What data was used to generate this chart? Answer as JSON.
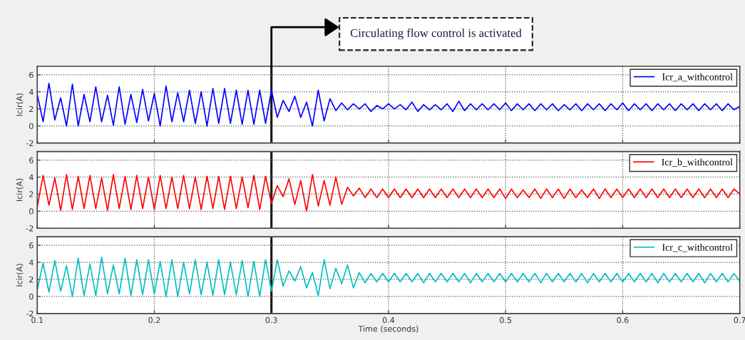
{
  "chart_data": [
    {
      "type": "line",
      "ylabel": "Icir(A)",
      "xlim": [
        0.1,
        0.7
      ],
      "xticks": [
        0.1,
        0.2,
        0.3,
        0.4,
        0.5,
        0.6,
        0.7
      ],
      "ylim": [
        -2,
        7
      ],
      "yticks": [
        -2,
        0,
        2,
        4,
        6
      ],
      "grid": true,
      "legend": "top right",
      "tick_labels": "y",
      "ref_lines": [
        {
          "axis": "x",
          "value": 0.3,
          "color": "#000000"
        }
      ],
      "annotations": [
        "Circulating flow control is activated"
      ],
      "x": [
        0.1,
        0.105,
        0.11,
        0.115,
        0.12,
        0.125,
        0.13,
        0.135,
        0.14,
        0.145,
        0.15,
        0.155,
        0.16,
        0.165,
        0.17,
        0.175,
        0.18,
        0.185,
        0.19,
        0.195,
        0.2,
        0.205,
        0.21,
        0.215,
        0.22,
        0.225,
        0.23,
        0.235,
        0.24,
        0.245,
        0.25,
        0.255,
        0.26,
        0.265,
        0.27,
        0.275,
        0.28,
        0.285,
        0.29,
        0.295,
        0.3,
        0.305,
        0.31,
        0.315,
        0.32,
        0.325,
        0.33,
        0.335,
        0.34,
        0.345,
        0.35,
        0.355,
        0.36,
        0.365,
        0.37,
        0.375,
        0.38,
        0.385,
        0.39,
        0.395,
        0.4,
        0.405,
        0.41,
        0.415,
        0.42,
        0.425,
        0.43,
        0.435,
        0.44,
        0.445,
        0.45,
        0.455,
        0.46,
        0.465,
        0.47,
        0.475,
        0.48,
        0.485,
        0.49,
        0.495,
        0.5,
        0.505,
        0.51,
        0.515,
        0.52,
        0.525,
        0.53,
        0.535,
        0.54,
        0.545,
        0.55,
        0.555,
        0.56,
        0.565,
        0.57,
        0.575,
        0.58,
        0.585,
        0.59,
        0.595,
        0.6,
        0.605,
        0.61,
        0.615,
        0.62,
        0.625,
        0.63,
        0.635,
        0.64,
        0.645,
        0.65,
        0.655,
        0.66,
        0.665,
        0.67,
        0.675,
        0.68,
        0.685,
        0.69,
        0.695,
        0.7
      ],
      "series": [
        {
          "name": "Icr_a_withcontrol",
          "color": "#0000ff",
          "values": [
            3.7,
            0.5,
            5.0,
            0.7,
            3.3,
            0.0,
            4.9,
            0.0,
            3.7,
            0.5,
            4.6,
            0.5,
            3.6,
            0.1,
            4.6,
            0.2,
            3.7,
            0.4,
            4.3,
            0.6,
            3.8,
            0.0,
            4.7,
            0.5,
            3.9,
            0.5,
            4.2,
            0.3,
            4.0,
            0.0,
            4.4,
            0.3,
            4.4,
            0.3,
            4.2,
            0.2,
            4.2,
            0.2,
            4.2,
            0.3,
            4.2,
            1.0,
            3.0,
            1.7,
            3.5,
            1.0,
            2.8,
            0.0,
            4.2,
            0.6,
            3.2,
            1.8,
            2.7,
            1.9,
            2.6,
            2.0,
            2.6,
            1.7,
            2.4,
            2.0,
            2.6,
            2.0,
            2.5,
            1.9,
            2.8,
            1.7,
            2.5,
            1.9,
            2.5,
            1.9,
            2.6,
            1.7,
            2.9,
            1.8,
            2.6,
            1.9,
            2.6,
            1.9,
            2.6,
            1.9,
            2.7,
            1.8,
            2.6,
            1.9,
            2.6,
            1.8,
            2.6,
            1.9,
            2.6,
            1.8,
            2.5,
            1.9,
            2.6,
            1.8,
            2.6,
            1.9,
            2.6,
            1.8,
            2.6,
            1.9,
            2.7,
            1.8,
            2.6,
            1.9,
            2.6,
            1.8,
            2.6,
            1.9,
            2.6,
            1.8,
            2.6,
            1.9,
            2.6,
            1.8,
            2.6,
            1.9,
            2.6,
            1.8,
            2.6,
            1.9,
            2.3
          ]
        }
      ]
    },
    {
      "type": "line",
      "ylabel": "Icir(A)",
      "xlim": [
        0.1,
        0.7
      ],
      "xticks": [
        0.1,
        0.2,
        0.3,
        0.4,
        0.5,
        0.6,
        0.7
      ],
      "ylim": [
        -2,
        7
      ],
      "yticks": [
        -2,
        0,
        2,
        4,
        6
      ],
      "grid": true,
      "legend": "top right",
      "tick_labels": "y",
      "ref_lines": [
        {
          "axis": "x",
          "value": 0.3,
          "color": "#000000"
        }
      ],
      "x": [
        0.1,
        0.105,
        0.11,
        0.115,
        0.12,
        0.125,
        0.13,
        0.135,
        0.14,
        0.145,
        0.15,
        0.155,
        0.16,
        0.165,
        0.17,
        0.175,
        0.18,
        0.185,
        0.19,
        0.195,
        0.2,
        0.205,
        0.21,
        0.215,
        0.22,
        0.225,
        0.23,
        0.235,
        0.24,
        0.245,
        0.25,
        0.255,
        0.26,
        0.265,
        0.27,
        0.275,
        0.28,
        0.285,
        0.29,
        0.295,
        0.3,
        0.305,
        0.31,
        0.315,
        0.32,
        0.325,
        0.33,
        0.335,
        0.34,
        0.345,
        0.35,
        0.355,
        0.36,
        0.365,
        0.37,
        0.375,
        0.38,
        0.385,
        0.39,
        0.395,
        0.4,
        0.405,
        0.41,
        0.415,
        0.42,
        0.425,
        0.43,
        0.435,
        0.44,
        0.445,
        0.45,
        0.455,
        0.46,
        0.465,
        0.47,
        0.475,
        0.48,
        0.485,
        0.49,
        0.495,
        0.5,
        0.505,
        0.51,
        0.515,
        0.52,
        0.525,
        0.53,
        0.535,
        0.54,
        0.545,
        0.55,
        0.555,
        0.56,
        0.565,
        0.57,
        0.575,
        0.58,
        0.585,
        0.59,
        0.595,
        0.6,
        0.605,
        0.61,
        0.615,
        0.62,
        0.625,
        0.63,
        0.635,
        0.64,
        0.645,
        0.65,
        0.655,
        0.66,
        0.665,
        0.67,
        0.675,
        0.68,
        0.685,
        0.69,
        0.695,
        0.7
      ],
      "series": [
        {
          "name": "Icr_b_withcontrol",
          "color": "#ff0000",
          "values": [
            0.5,
            4.2,
            0.7,
            3.9,
            0.1,
            4.3,
            0.2,
            4.1,
            0.3,
            4.2,
            0.3,
            3.9,
            0.1,
            4.3,
            0.3,
            4.1,
            0.2,
            4.2,
            0.3,
            4.0,
            0.2,
            4.2,
            0.3,
            4.0,
            0.3,
            4.2,
            0.3,
            4.0,
            0.2,
            4.1,
            0.3,
            4.1,
            0.2,
            4.1,
            0.3,
            4.0,
            0.4,
            4.2,
            0.2,
            4.1,
            0.9,
            3.0,
            1.7,
            3.8,
            0.8,
            3.6,
            0.0,
            4.3,
            0.6,
            3.6,
            0.7,
            4.0,
            0.8,
            2.8,
            1.8,
            2.7,
            1.6,
            2.6,
            1.6,
            2.6,
            1.6,
            2.6,
            1.6,
            2.6,
            1.6,
            2.6,
            1.6,
            2.6,
            1.6,
            2.6,
            1.6,
            2.6,
            1.6,
            2.6,
            1.6,
            2.6,
            1.6,
            2.6,
            1.6,
            2.6,
            1.5,
            2.6,
            1.6,
            2.5,
            1.6,
            2.6,
            1.5,
            2.6,
            1.6,
            2.6,
            1.5,
            2.6,
            1.6,
            2.5,
            1.6,
            2.6,
            1.5,
            2.6,
            1.6,
            2.6,
            1.6,
            2.6,
            1.6,
            2.6,
            1.6,
            2.6,
            1.6,
            2.6,
            1.6,
            2.6,
            1.6,
            2.6,
            1.6,
            2.6,
            1.6,
            2.6,
            1.6,
            2.6,
            1.6,
            2.6,
            2.0
          ]
        }
      ]
    },
    {
      "type": "line",
      "xlabel": "Time (seconds)",
      "ylabel": "Icir(A)",
      "xlim": [
        0.1,
        0.7
      ],
      "xticks": [
        0.1,
        0.2,
        0.3,
        0.4,
        0.5,
        0.6,
        0.7
      ],
      "ylim": [
        -2,
        7
      ],
      "yticks": [
        -2,
        0,
        2,
        4,
        6
      ],
      "grid": true,
      "legend": "top right",
      "ref_lines": [
        {
          "axis": "x",
          "value": 0.3,
          "color": "#000000"
        }
      ],
      "x": [
        0.1,
        0.105,
        0.11,
        0.115,
        0.12,
        0.125,
        0.13,
        0.135,
        0.14,
        0.145,
        0.15,
        0.155,
        0.16,
        0.165,
        0.17,
        0.175,
        0.18,
        0.185,
        0.19,
        0.195,
        0.2,
        0.205,
        0.21,
        0.215,
        0.22,
        0.225,
        0.23,
        0.235,
        0.24,
        0.245,
        0.25,
        0.255,
        0.26,
        0.265,
        0.27,
        0.275,
        0.28,
        0.285,
        0.29,
        0.295,
        0.3,
        0.305,
        0.31,
        0.315,
        0.32,
        0.325,
        0.33,
        0.335,
        0.34,
        0.345,
        0.35,
        0.355,
        0.36,
        0.365,
        0.37,
        0.375,
        0.38,
        0.385,
        0.39,
        0.395,
        0.4,
        0.405,
        0.41,
        0.415,
        0.42,
        0.425,
        0.43,
        0.435,
        0.44,
        0.445,
        0.45,
        0.455,
        0.46,
        0.465,
        0.47,
        0.475,
        0.48,
        0.485,
        0.49,
        0.495,
        0.5,
        0.505,
        0.51,
        0.515,
        0.52,
        0.525,
        0.53,
        0.535,
        0.54,
        0.545,
        0.55,
        0.555,
        0.56,
        0.565,
        0.57,
        0.575,
        0.58,
        0.585,
        0.59,
        0.595,
        0.6,
        0.605,
        0.61,
        0.615,
        0.62,
        0.625,
        0.63,
        0.635,
        0.64,
        0.645,
        0.65,
        0.655,
        0.66,
        0.665,
        0.67,
        0.675,
        0.68,
        0.685,
        0.69,
        0.695,
        0.7
      ],
      "series": [
        {
          "name": "Icr_c_withcontrol",
          "color": "#00bfbf",
          "values": [
            0.8,
            3.9,
            0.5,
            4.2,
            0.6,
            3.6,
            0.0,
            4.5,
            0.1,
            3.8,
            0.1,
            4.6,
            0.3,
            3.7,
            0.3,
            4.5,
            0.1,
            4.3,
            0.2,
            4.3,
            0.3,
            4.1,
            0.0,
            4.3,
            0.0,
            4.0,
            0.3,
            4.3,
            0.2,
            4.0,
            0.1,
            4.3,
            0.2,
            4.0,
            0.2,
            4.2,
            0.0,
            4.1,
            0.0,
            4.3,
            0.6,
            4.3,
            1.2,
            3.0,
            1.8,
            3.5,
            1.0,
            2.8,
            0.1,
            4.3,
            0.9,
            3.3,
            1.5,
            3.7,
            1.0,
            2.8,
            1.6,
            2.7,
            1.7,
            2.7,
            1.7,
            2.7,
            1.7,
            2.7,
            1.7,
            2.7,
            1.6,
            2.7,
            1.7,
            2.7,
            1.7,
            2.7,
            1.7,
            2.7,
            1.6,
            2.7,
            1.7,
            2.7,
            1.7,
            2.7,
            1.7,
            2.7,
            1.7,
            2.7,
            1.7,
            2.7,
            1.6,
            2.7,
            1.7,
            2.7,
            1.7,
            2.7,
            1.7,
            2.7,
            1.6,
            2.7,
            1.7,
            2.7,
            1.7,
            2.7,
            1.7,
            2.7,
            1.7,
            2.7,
            1.7,
            2.7,
            1.6,
            2.7,
            1.7,
            2.7,
            1.7,
            2.7,
            1.7,
            2.7,
            1.6,
            2.7,
            1.7,
            2.7,
            1.7,
            2.7,
            1.8
          ]
        }
      ]
    }
  ]
}
